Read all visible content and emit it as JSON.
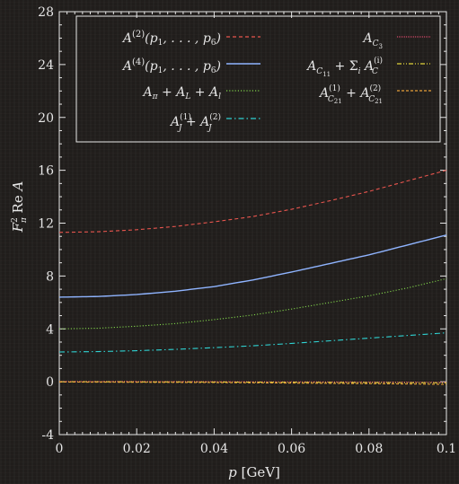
{
  "chart_data": {
    "type": "line",
    "xlabel": "p [GeV]",
    "ylabel": "F_π^2 Re A",
    "xlim": [
      0,
      0.1
    ],
    "ylim": [
      -4,
      28
    ],
    "xticks": [
      0,
      0.02,
      0.04,
      0.06,
      0.08,
      0.1
    ],
    "yticks": [
      -4,
      0,
      4,
      8,
      12,
      16,
      20,
      24,
      28
    ],
    "xtick_labels": [
      "0",
      "0.02",
      "0.04",
      "0.06",
      "0.08",
      "0.1"
    ],
    "ytick_labels": [
      "-4",
      "0",
      "4",
      "8",
      "12",
      "16",
      "20",
      "24",
      "28"
    ],
    "grid": false,
    "legend_position": "top",
    "x": [
      0,
      0.01,
      0.02,
      0.03,
      0.04,
      0.05,
      0.06,
      0.07,
      0.08,
      0.09,
      0.1
    ],
    "series": [
      {
        "name": "A^(2)(p1,...,p6)",
        "color": "#e8554e",
        "dash": "dashed",
        "values": [
          11.3,
          11.35,
          11.5,
          11.75,
          12.1,
          12.5,
          13.05,
          13.7,
          14.4,
          15.2,
          16.0
        ]
      },
      {
        "name": "A^(4)(p1,...,p6)",
        "color": "#8fb4ff",
        "dash": "solid",
        "values": [
          6.4,
          6.45,
          6.6,
          6.85,
          7.2,
          7.7,
          8.3,
          8.95,
          9.6,
          10.35,
          11.1
        ]
      },
      {
        "name": "Aπ + AL + Al",
        "color": "#7fd14a",
        "dash": "dotted",
        "values": [
          4.0,
          4.05,
          4.2,
          4.4,
          4.7,
          5.05,
          5.5,
          6.0,
          6.5,
          7.1,
          7.8
        ]
      },
      {
        "name": "AJ^(1) + AJ^(2)",
        "color": "#2fd3d3",
        "dash": "dashdot",
        "values": [
          2.25,
          2.28,
          2.35,
          2.45,
          2.58,
          2.72,
          2.9,
          3.1,
          3.3,
          3.5,
          3.7
        ]
      },
      {
        "name": "AC3",
        "color": "#d64a6a",
        "dash": "densedot",
        "values": [
          0.02,
          0.02,
          0.02,
          0.01,
          0.01,
          0.0,
          0.0,
          -0.01,
          -0.02,
          -0.03,
          -0.04
        ]
      },
      {
        "name": "AC11 + Σi AC^(i)",
        "color": "#e0d23a",
        "dash": "dashdotdot",
        "values": [
          0.0,
          0.0,
          -0.01,
          -0.01,
          -0.02,
          -0.03,
          -0.04,
          -0.05,
          -0.06,
          -0.07,
          -0.08
        ]
      },
      {
        "name": "AC21^(1) + AC21^(2)",
        "color": "#e8a13a",
        "dash": "finedash",
        "values": [
          -0.02,
          -0.03,
          -0.04,
          -0.05,
          -0.06,
          -0.08,
          -0.1,
          -0.12,
          -0.14,
          -0.17,
          -0.2
        ]
      }
    ]
  }
}
